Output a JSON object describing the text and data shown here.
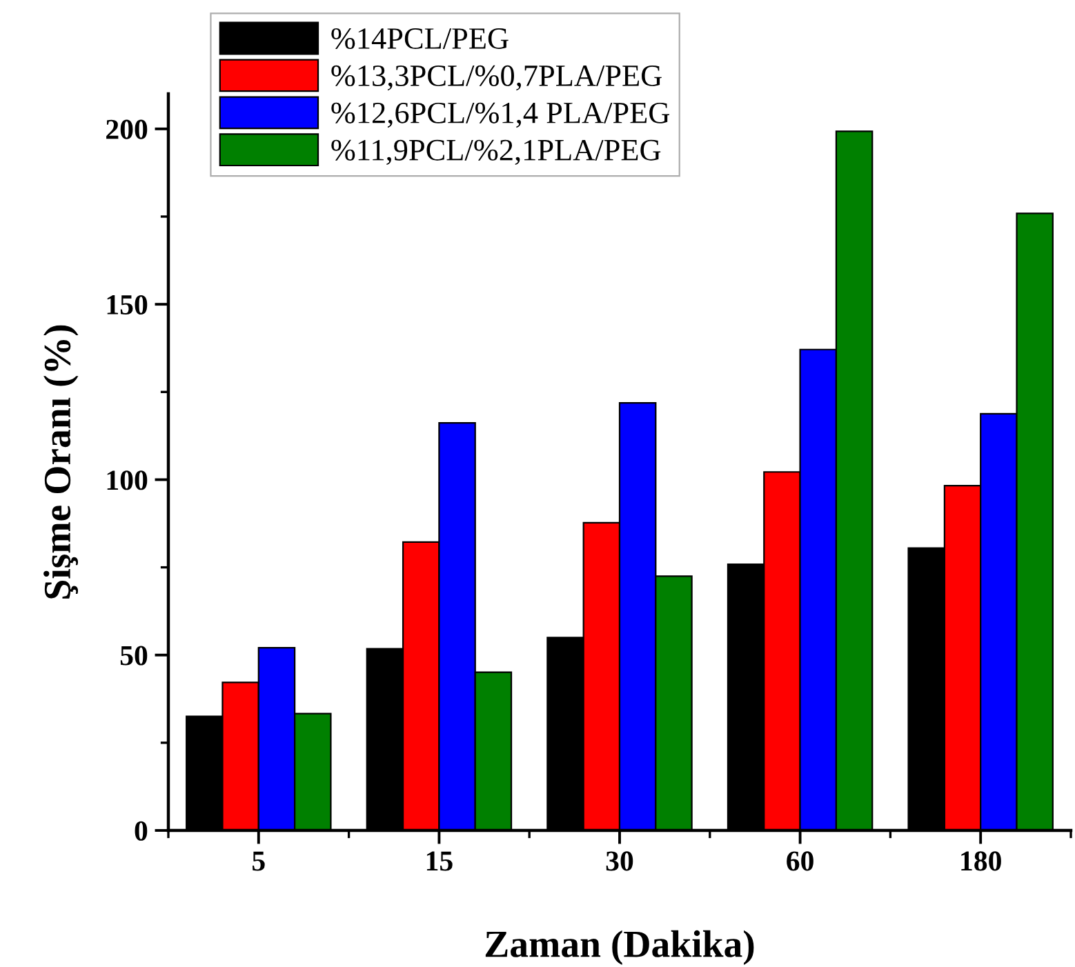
{
  "chart_data": {
    "type": "bar",
    "xlabel": "Zaman (Dakika)",
    "ylabel": "Şişme Oranı (%)",
    "categories": [
      "5",
      "15",
      "30",
      "60",
      "180"
    ],
    "series": [
      {
        "name": "%14PCL/PEG",
        "color": "#000000",
        "values": [
          32.5,
          51.8,
          55.0,
          75.9,
          80.5
        ]
      },
      {
        "name": "%13,3PCL/%0,7PLA/PEG",
        "color": "#ff0000",
        "values": [
          42.2,
          82.2,
          87.7,
          102.2,
          98.3
        ]
      },
      {
        "name": "%12,6PCL/%1,4 PLA/PEG",
        "color": "#0000ff",
        "values": [
          52.1,
          116.2,
          121.9,
          137.1,
          118.8
        ]
      },
      {
        "name": "%11,9PCL/%2,1PLA/PEG",
        "color": "#008000",
        "values": [
          33.3,
          45.1,
          72.5,
          199.3,
          175.9
        ]
      }
    ],
    "ylim": [
      0,
      210
    ],
    "yticks": [
      0,
      50,
      100,
      150,
      200
    ],
    "grid": false,
    "legend": "top left"
  }
}
